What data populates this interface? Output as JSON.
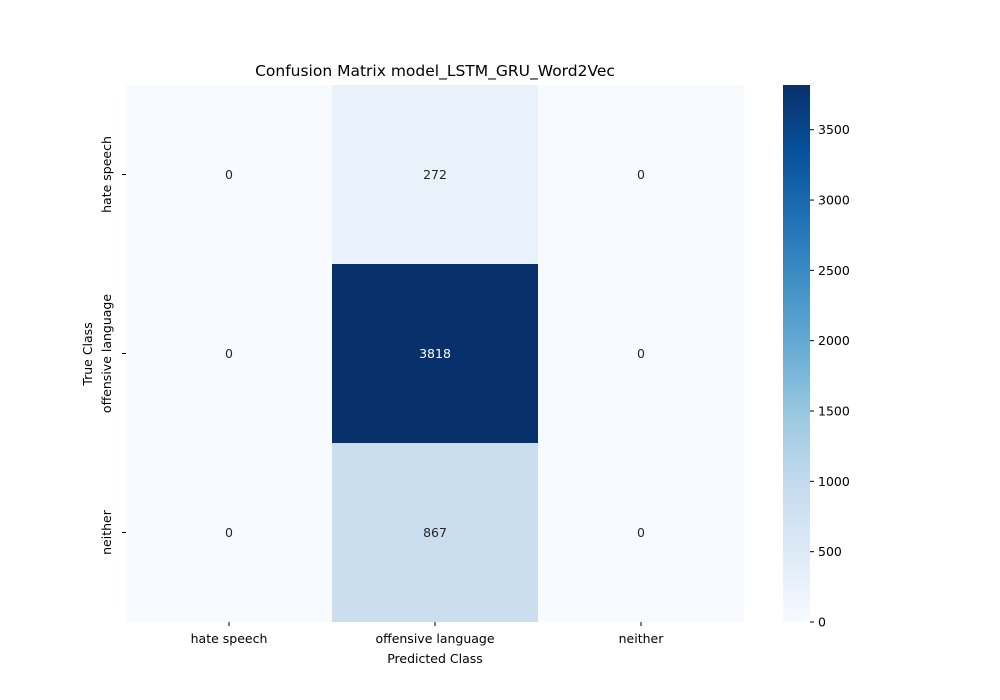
{
  "chart_data": {
    "type": "heatmap",
    "title": "Confusion Matrix model_LSTM_GRU_Word2Vec",
    "xlabel": "Predicted Class",
    "ylabel": "True Class",
    "x_categories": [
      "hate speech",
      "offensive language",
      "neither"
    ],
    "y_categories": [
      "hate speech",
      "offensive language",
      "neither"
    ],
    "values": [
      [
        0,
        272,
        0
      ],
      [
        0,
        3818,
        0
      ],
      [
        0,
        867,
        0
      ]
    ],
    "colormap": "Blues",
    "color_low": "#f7fbff",
    "color_high": "#08306b",
    "colorbar": {
      "ticks": [
        0,
        500,
        1000,
        1500,
        2000,
        2500,
        3000,
        3500
      ],
      "range": [
        0,
        3818
      ]
    }
  }
}
